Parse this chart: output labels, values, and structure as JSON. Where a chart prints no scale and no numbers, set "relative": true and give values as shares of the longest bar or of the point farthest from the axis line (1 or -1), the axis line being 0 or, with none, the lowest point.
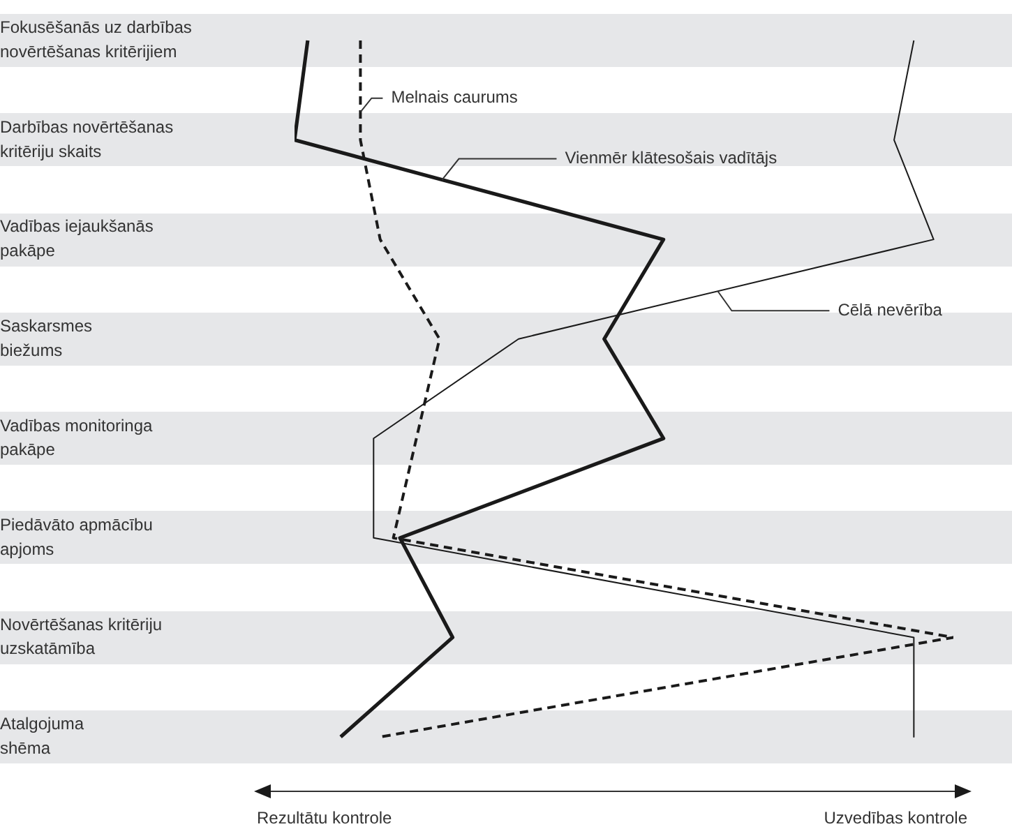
{
  "chart_data": {
    "type": "line",
    "orientation": "horizontal",
    "relative": true,
    "grid": false,
    "legend": false,
    "marker": "none",
    "tick_labels": "y",
    "categories": [
      "Fokusēšanās uz darbības\nnovērtēšanas kritērijiem",
      "Darbības novērtēšanas\nkritēriju skaits",
      "Vadības iejaukšanās\npakāpe",
      "Saskarsmes\nbiežums",
      "Vadības monitoringa\npakāpe",
      "Piedāvāto apmācību\napjoms",
      "Novērtēšanas kritēriju\nuzskatāmība",
      "Atalgojuma\nshēma"
    ],
    "series": [
      {
        "name": "Vienmēr klātesošais vadītājs",
        "color": "#1a1a1a",
        "line_style": "solid",
        "values": [
          0.02,
          0,
          0.56,
          0.47,
          0.56,
          0.16,
          0.24,
          0.07
        ]
      },
      {
        "name": "Cēlā nevērība",
        "color": "#1a1a1a",
        "line_style": "solid",
        "values": [
          0.94,
          0.91,
          0.97,
          0.34,
          0.12,
          0.12,
          0.94,
          0.94
        ]
      },
      {
        "name": "Melnais caurums",
        "color": "#1a1a1a",
        "line_style": "dashed",
        "values": [
          0.1,
          0.1,
          0.13,
          0.22,
          null,
          0.15,
          1,
          0.13
        ]
      }
    ],
    "annotations": [
      "Rezultātu kontrole",
      "Uzvedības kontrole"
    ]
  }
}
